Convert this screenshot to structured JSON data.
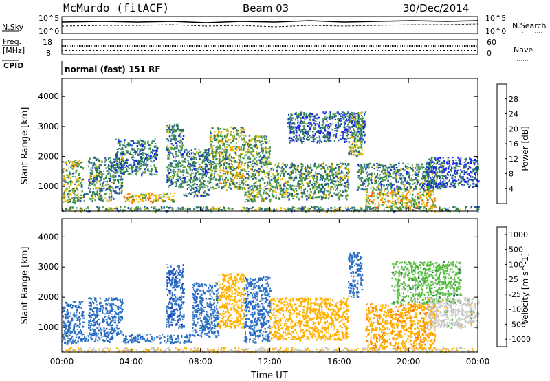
{
  "header": {
    "station": "McMurdo (fitACF)",
    "beam": "Beam 03",
    "date": "30/Dec/2014"
  },
  "top_panels": {
    "nsky_label": "N.Sky",
    "nsearch_label": "N.Search",
    "left_ticks": [
      "10^5",
      "10^0"
    ],
    "right_ticks": [
      "10^5",
      "10^0"
    ],
    "freq_label_line1": "Freq.",
    "freq_label_line2": "[MHz]",
    "freq_ticks": [
      "18",
      "8"
    ],
    "nave_label": "Nave",
    "nave_ticks": [
      "60",
      "0"
    ],
    "cpid_label": "CPID",
    "cpid_text": "normal (fast) 151 RF"
  },
  "chart_data": [
    {
      "type": "heatmap",
      "title": "",
      "xlabel": "Time UT",
      "ylabel": "Slant Range [km]",
      "x_ticks": [
        "00:00",
        "04:00",
        "08:00",
        "12:00",
        "16:00",
        "20:00",
        "00:00"
      ],
      "x_range_hours": [
        0,
        24
      ],
      "y_ticks": [
        1000,
        2000,
        3000,
        4000
      ],
      "ylim": [
        180,
        4600
      ],
      "colorbar_label": "Power [dB]",
      "colorbar_ticks": [
        4,
        8,
        12,
        16,
        20,
        24,
        28
      ],
      "colorbar_range": [
        0,
        32
      ],
      "colorbar_colors": [
        "#1418ff",
        "#1f4ea8",
        "#2f7d58",
        "#50a050",
        "#e8c000",
        "#ff8c00",
        "#ff5000",
        "#e00000"
      ],
      "scatter_regions": [
        {
          "t0": 0.0,
          "t1": 24.0,
          "r0": 200,
          "r1": 350,
          "value": 12
        },
        {
          "t0": 0.0,
          "t1": 1.2,
          "r0": 500,
          "r1": 1900,
          "value": 14
        },
        {
          "t0": 1.2,
          "t1": 3.0,
          "r0": 550,
          "r1": 800,
          "value": 12
        },
        {
          "t0": 1.5,
          "t1": 3.5,
          "r0": 800,
          "r1": 2000,
          "value": 10
        },
        {
          "t0": 3.5,
          "t1": 6.5,
          "r0": 500,
          "r1": 800,
          "value": 18
        },
        {
          "t0": 3.0,
          "t1": 5.5,
          "r0": 1400,
          "r1": 2600,
          "value": 9
        },
        {
          "t0": 6.0,
          "t1": 7.0,
          "r0": 1000,
          "r1": 3100,
          "value": 10
        },
        {
          "t0": 7.0,
          "t1": 8.5,
          "r0": 700,
          "r1": 2300,
          "value": 10
        },
        {
          "t0": 8.5,
          "t1": 10.5,
          "r0": 900,
          "r1": 3000,
          "value": 14
        },
        {
          "t0": 10.5,
          "t1": 12.0,
          "r0": 500,
          "r1": 2700,
          "value": 13
        },
        {
          "t0": 12.0,
          "t1": 16.5,
          "r0": 600,
          "r1": 1800,
          "value": 12
        },
        {
          "t0": 13.0,
          "t1": 17.5,
          "r0": 2500,
          "r1": 3500,
          "value": 7
        },
        {
          "t0": 16.5,
          "t1": 17.3,
          "r0": 2000,
          "r1": 3500,
          "value": 14
        },
        {
          "t0": 17.5,
          "t1": 21.5,
          "r0": 300,
          "r1": 900,
          "value": 18
        },
        {
          "t0": 17.0,
          "t1": 22.0,
          "r0": 900,
          "r1": 1800,
          "value": 10
        },
        {
          "t0": 21.0,
          "t1": 24.0,
          "r0": 1000,
          "r1": 2000,
          "value": 6
        }
      ]
    },
    {
      "type": "heatmap",
      "title": "",
      "xlabel": "Time UT",
      "ylabel": "Slant Range [km]",
      "x_ticks": [
        "00:00",
        "04:00",
        "08:00",
        "12:00",
        "16:00",
        "20:00",
        "00:00"
      ],
      "x_range_hours": [
        0,
        24
      ],
      "y_ticks": [
        1000,
        2000,
        3000,
        4000
      ],
      "ylim": [
        180,
        4600
      ],
      "colorbar_label": "Velocity [m s^-1]",
      "colorbar_ticks": [
        "1000",
        "500",
        "100",
        "25",
        "-25",
        "-100",
        "-500",
        "-1000"
      ],
      "colorbar_colors": [
        "#1f3dbf",
        "#2a6fc4",
        "#2f7d58",
        "#58c040",
        "#c8c8c8",
        "#ffb000",
        "#ff7a00",
        "#e00000"
      ],
      "scatter_regions": [
        {
          "t0": 0.0,
          "t1": 24.0,
          "r0": 200,
          "r1": 350,
          "value": -100
        },
        {
          "t0": 0.0,
          "t1": 1.2,
          "r0": 500,
          "r1": 1900,
          "value": 200
        },
        {
          "t0": 1.2,
          "t1": 3.0,
          "r0": 550,
          "r1": 800,
          "value": 300
        },
        {
          "t0": 1.5,
          "t1": 3.5,
          "r0": 800,
          "r1": 2000,
          "value": 300
        },
        {
          "t0": 3.5,
          "t1": 7.5,
          "r0": 500,
          "r1": 800,
          "value": 300
        },
        {
          "t0": 6.0,
          "t1": 7.0,
          "r0": 1000,
          "r1": 3100,
          "value": 400
        },
        {
          "t0": 7.5,
          "t1": 9.0,
          "r0": 700,
          "r1": 2500,
          "value": 200
        },
        {
          "t0": 9.0,
          "t1": 10.5,
          "r0": 1000,
          "r1": 2800,
          "value": -300
        },
        {
          "t0": 10.5,
          "t1": 12.0,
          "r0": 500,
          "r1": 2700,
          "value": 200
        },
        {
          "t0": 12.0,
          "t1": 16.5,
          "r0": 600,
          "r1": 2000,
          "value": -300
        },
        {
          "t0": 16.5,
          "t1": 17.3,
          "r0": 2000,
          "r1": 3500,
          "value": 200
        },
        {
          "t0": 17.5,
          "t1": 21.5,
          "r0": 300,
          "r1": 1800,
          "value": -400
        },
        {
          "t0": 19.0,
          "t1": 23.0,
          "r0": 1800,
          "r1": 3200,
          "value": 0
        },
        {
          "t0": 21.0,
          "t1": 24.0,
          "r0": 1000,
          "r1": 2000,
          "value": -60
        }
      ]
    }
  ]
}
